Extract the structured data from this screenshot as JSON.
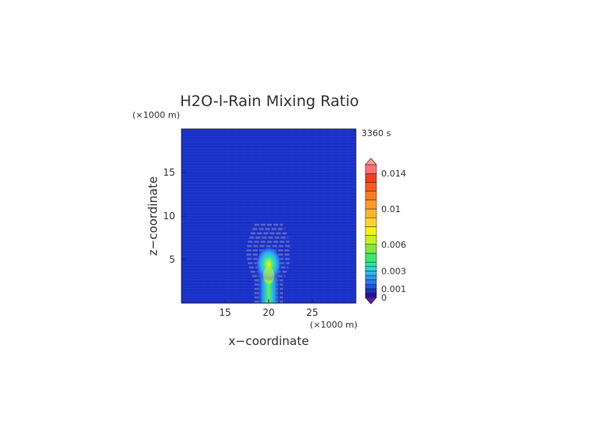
{
  "chart_data": {
    "type": "heatmap",
    "title": "H2O-l-Rain Mixing Ratio",
    "time_label": "3360 s",
    "xlabel": "x−coordinate",
    "ylabel": "z−coordinate",
    "x_unit": "(×1000 m)",
    "y_unit": "(×1000 m)",
    "xlim": [
      10,
      30
    ],
    "ylim": [
      0,
      20
    ],
    "x_ticks": [
      "15",
      "20",
      "25"
    ],
    "y_ticks": [
      "5",
      "10",
      "15"
    ],
    "field": {
      "description_of_values": "rain mixing ratio, peak near x=20, z=4-5",
      "peak_value": 0.006,
      "peak_x": 20,
      "peak_z": 4.5,
      "plume_x_range": [
        19.2,
        20.8
      ],
      "plume_z_range": [
        0,
        6.2
      ],
      "background_value": 0
    },
    "colorbar": {
      "ticks": [
        "0.014",
        "0.01",
        "0.006",
        "0.003",
        "0.001",
        "0"
      ],
      "tick_values": [
        0.014,
        0.01,
        0.006,
        0.003,
        0.001,
        0
      ],
      "levels": [
        0,
        0.0005,
        0.001,
        0.0015,
        0.002,
        0.0025,
        0.003,
        0.0035,
        0.004,
        0.005,
        0.006,
        0.007,
        0.008,
        0.009,
        0.01,
        0.011,
        0.012,
        0.013,
        0.014,
        0.015
      ],
      "colors": [
        "#2a0c9e",
        "#1830c8",
        "#1f55e6",
        "#2b78f0",
        "#2f98f3",
        "#31b6ee",
        "#2fd1d8",
        "#2ee3a8",
        "#39e66f",
        "#7fe83a",
        "#c7f01f",
        "#f4f21a",
        "#ffd42a",
        "#ffb42e",
        "#ff9a2a",
        "#ff7a22",
        "#ff5a1c",
        "#f23c1f",
        "#ff6f6f"
      ],
      "under_color": "#5a1ab0",
      "over_color": "#ff9a9a"
    }
  }
}
